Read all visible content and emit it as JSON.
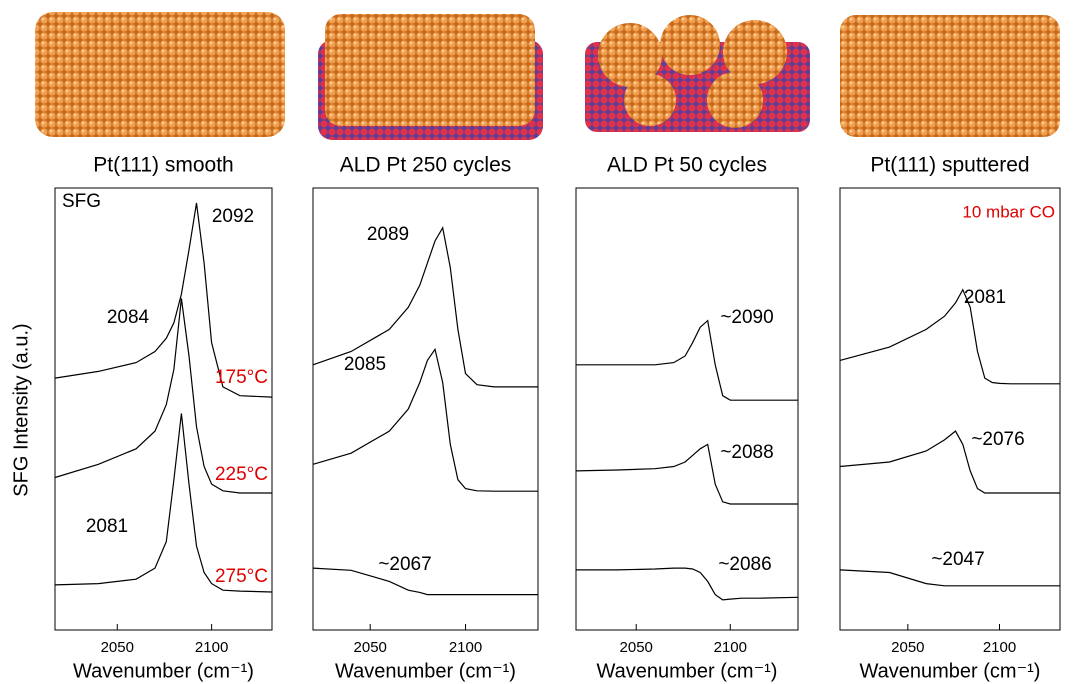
{
  "ylabel": "SFG Intensity (a.u.)",
  "chart_data": [
    {
      "type": "line",
      "title": "Pt(111) smooth",
      "xlabel": "Wavenumber (cm⁻¹)",
      "x": [
        2017,
        2040,
        2060,
        2070,
        2076,
        2080,
        2084,
        2088,
        2092,
        2096,
        2100,
        2106,
        2115,
        2132
      ],
      "xlim": [
        2017,
        2132
      ],
      "xticks": [
        2050,
        2100
      ],
      "ylim": [
        0,
        10
      ],
      "series": [
        {
          "name": "175°C",
          "color": "#000000",
          "values": [
            5.7,
            5.85,
            6.05,
            6.3,
            6.6,
            6.95,
            7.6,
            8.6,
            9.66,
            8.3,
            6.5,
            5.5,
            5.3,
            5.27
          ]
        },
        {
          "name": "225°C",
          "color": "#000000",
          "values": [
            3.45,
            3.75,
            4.1,
            4.5,
            5.1,
            5.9,
            7.5,
            6.2,
            4.6,
            3.7,
            3.3,
            3.15,
            3.1,
            3.1
          ]
        },
        {
          "name": "275°C",
          "color": "#000000",
          "values": [
            1.02,
            1.05,
            1.15,
            1.4,
            2.0,
            3.4,
            4.9,
            3.3,
            1.9,
            1.3,
            1.05,
            0.9,
            0.88,
            0.86
          ]
        }
      ],
      "annotations": [
        "SFG",
        "2092",
        "2084",
        "2081"
      ]
    },
    {
      "type": "line",
      "title": "ALD Pt 250 cycles",
      "xlabel": "Wavenumber (cm⁻¹)",
      "x": [
        2020,
        2040,
        2060,
        2070,
        2076,
        2080,
        2084,
        2088,
        2092,
        2096,
        2100,
        2106,
        2115,
        2138
      ],
      "xlim": [
        2020,
        2138
      ],
      "xticks": [
        2050,
        2100
      ],
      "ylim": [
        0,
        10
      ],
      "series": [
        {
          "color": "#000000",
          "values": [
            6.0,
            6.3,
            6.8,
            7.3,
            7.8,
            8.3,
            8.8,
            9.1,
            8.2,
            6.8,
            5.8,
            5.55,
            5.5,
            5.5
          ]
        },
        {
          "color": "#000000",
          "values": [
            3.75,
            4.0,
            4.5,
            5.0,
            5.6,
            6.1,
            6.35,
            5.6,
            4.2,
            3.4,
            3.2,
            3.15,
            3.14,
            3.14
          ]
        },
        {
          "color": "#000000",
          "values": [
            1.4,
            1.35,
            1.1,
            0.9,
            0.85,
            0.8,
            0.8,
            0.8,
            0.8,
            0.8,
            0.8,
            0.8,
            0.8,
            0.8
          ]
        }
      ],
      "annotations": [
        "2089",
        "2085",
        "~2067"
      ]
    },
    {
      "type": "line",
      "title": "ALD Pt 50 cycles",
      "xlabel": "Wavenumber (cm⁻¹)",
      "x": [
        2018,
        2040,
        2060,
        2070,
        2076,
        2080,
        2084,
        2088,
        2092,
        2096,
        2100,
        2106,
        2115,
        2136
      ],
      "xlim": [
        2018,
        2136
      ],
      "xticks": [
        2050,
        2100
      ],
      "ylim": [
        0,
        10
      ],
      "series": [
        {
          "color": "#000000",
          "values": [
            6.0,
            6.0,
            6.0,
            6.05,
            6.2,
            6.5,
            6.85,
            7.0,
            6.0,
            5.3,
            5.2,
            5.2,
            5.2,
            5.2
          ]
        },
        {
          "color": "#000000",
          "values": [
            3.6,
            3.62,
            3.65,
            3.7,
            3.8,
            3.95,
            4.1,
            4.2,
            3.3,
            2.9,
            2.85,
            2.85,
            2.85,
            2.85
          ]
        },
        {
          "color": "#000000",
          "values": [
            1.36,
            1.36,
            1.38,
            1.4,
            1.4,
            1.38,
            1.3,
            1.1,
            0.8,
            0.68,
            0.7,
            0.72,
            0.72,
            0.74
          ]
        }
      ],
      "annotations": [
        "~2090",
        "~2088",
        "~2086"
      ]
    },
    {
      "type": "line",
      "title": "Pt(111) sputtered",
      "xlabel": "Wavenumber (cm⁻¹)",
      "x": [
        2013,
        2040,
        2060,
        2070,
        2076,
        2080,
        2084,
        2088,
        2092,
        2096,
        2100,
        2106,
        2115,
        2133
      ],
      "xlim": [
        2013,
        2133
      ],
      "xticks": [
        2050,
        2100
      ],
      "ylim": [
        0,
        10
      ],
      "series": [
        {
          "color": "#000000",
          "values": [
            6.1,
            6.4,
            6.8,
            7.1,
            7.4,
            7.7,
            7.3,
            6.3,
            5.7,
            5.6,
            5.58,
            5.57,
            5.57,
            5.57
          ]
        },
        {
          "color": "#000000",
          "values": [
            3.7,
            3.8,
            4.05,
            4.3,
            4.5,
            4.2,
            3.6,
            3.2,
            3.1,
            3.1,
            3.1,
            3.1,
            3.1,
            3.1
          ]
        },
        {
          "color": "#000000",
          "values": [
            1.36,
            1.3,
            1.05,
            1.0,
            1.0,
            1.0,
            1.0,
            1.0,
            1.0,
            1.0,
            1.0,
            1.0,
            1.0,
            1.0
          ]
        }
      ],
      "annotations": [
        "10 mbar CO",
        "2081",
        "~2076",
        "~2047"
      ]
    }
  ]
}
